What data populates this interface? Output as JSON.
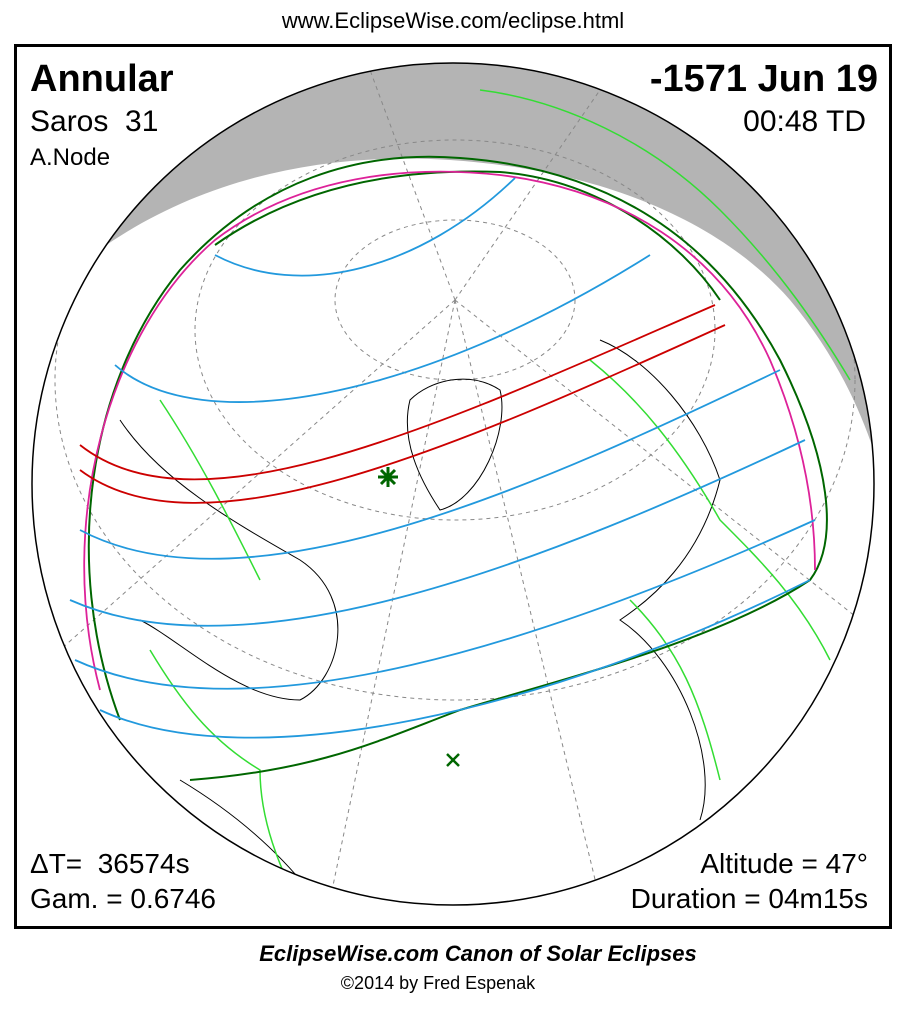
{
  "header": {
    "url": "www.EclipseWise.com/eclipse.html"
  },
  "eclipse": {
    "type": "Annular",
    "date": "-1571 Jun 19",
    "saros": "Saros  31",
    "time": "00:48 TD",
    "node": "A.Node",
    "delta_t": "ΔT=  36574s",
    "gamma": "Gam. = 0.6746",
    "altitude": "Altitude = 47°",
    "duration": "Duration = 04m15s"
  },
  "footer": {
    "title": "EclipseWise.com Canon of Solar Eclipses",
    "copyright": "©2014 by Fred Espenak"
  }
}
